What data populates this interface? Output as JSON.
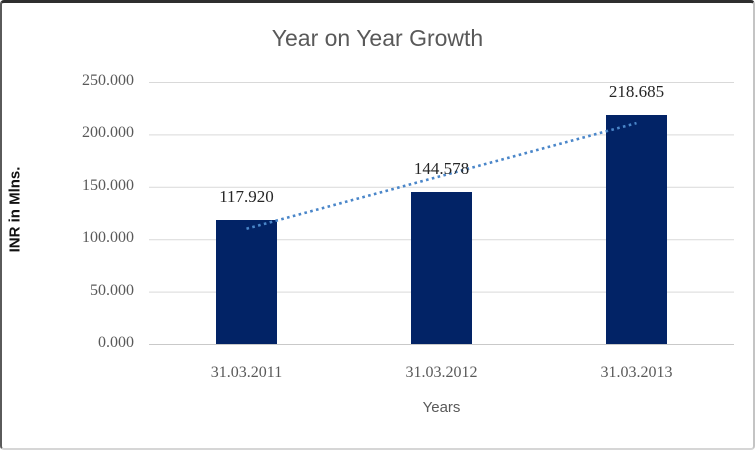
{
  "chart_data": {
    "type": "bar",
    "title": "Year on Year Growth",
    "xlabel": "Years",
    "ylabel": "INR in Mlns.",
    "categories": [
      "31.03.2011",
      "31.03.2012",
      "31.03.2013"
    ],
    "values": [
      117.92,
      144.578,
      218.685
    ],
    "data_labels": [
      "117.920",
      "144.578",
      "218.685"
    ],
    "ylim": [
      0,
      250
    ],
    "ytick_step": 50,
    "ytick_labels": [
      "0.000",
      "50.000",
      "100.000",
      "150.000",
      "200.000",
      "250.000"
    ],
    "grid": true,
    "legend": "none",
    "trendline": {
      "type": "linear",
      "style": "dotted",
      "endpoint_values": [
        110.012,
        210.776
      ]
    },
    "colors": {
      "bar": "#022366",
      "trendline": "#4a86c9",
      "gridline": "#d9d9d9",
      "baseline": "#c9c9c9",
      "axis_text": "#595959",
      "data_label": "#262626",
      "title": "#595959"
    }
  }
}
